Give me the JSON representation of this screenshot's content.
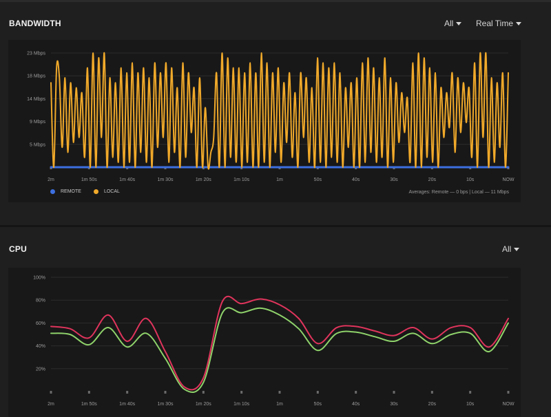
{
  "bandwidth": {
    "title": "BANDWIDTH",
    "filter": {
      "selected": "All",
      "icon": "caret-down-icon"
    },
    "range": {
      "selected": "Real Time",
      "icon": "caret-down-icon"
    },
    "legend": [
      {
        "label": "REMOTE",
        "color": "#3d6fe0"
      },
      {
        "label": "LOCAL",
        "color": "#f0a92a"
      }
    ],
    "averages": "Averages: Remote — 0 bps | Local — 11 Mbps"
  },
  "cpu": {
    "title": "CPU",
    "filter": {
      "selected": "All",
      "icon": "caret-down-icon"
    }
  },
  "chart_data": [
    {
      "type": "line",
      "ylabel": "",
      "xlabel": "",
      "y_ticks": [
        "5 Mbps",
        "9 Mbps",
        "14 Mbps",
        "18 Mbps",
        "23 Mbps"
      ],
      "y_tick_values": [
        4.6,
        9.2,
        13.8,
        18.4,
        23
      ],
      "ylim": [
        0,
        23
      ],
      "x_ticks": [
        "2m",
        "1m 50s",
        "1m 40s",
        "1m 30s",
        "1m 20s",
        "1m 10s",
        "1m",
        "50s",
        "40s",
        "30s",
        "20s",
        "10s",
        "NOW"
      ],
      "xlim": [
        -120,
        0
      ],
      "grid": true,
      "legend_position": "bottom-left",
      "series": [
        {
          "name": "REMOTE",
          "color": "#3d6fe0",
          "values": [
            0,
            0,
            0,
            0,
            0,
            0,
            0,
            0,
            0,
            0,
            0,
            0,
            0
          ]
        },
        {
          "name": "LOCAL",
          "color": "#f0a92a",
          "values": [
            17,
            0,
            20,
            18,
            4,
            18,
            3,
            17,
            5,
            16,
            6,
            15,
            2,
            20,
            0,
            23,
            0,
            22,
            6,
            23,
            0,
            18,
            2,
            17,
            1,
            20,
            0,
            19,
            1,
            21,
            0,
            19,
            3,
            20,
            1,
            18,
            0,
            21,
            4,
            19,
            6,
            21,
            1,
            20,
            3,
            16,
            0,
            21,
            2,
            19,
            7,
            16,
            0,
            18,
            0,
            12,
            0,
            3,
            6,
            19,
            0,
            23,
            0,
            22,
            2,
            20,
            1,
            20,
            0,
            19,
            1,
            21,
            0,
            19,
            0,
            23,
            1,
            21,
            0,
            19,
            3,
            20,
            1,
            17,
            5,
            19,
            2,
            15,
            0,
            19,
            6,
            18,
            1,
            16,
            0,
            22,
            1,
            21,
            0,
            20,
            2,
            21,
            1,
            19,
            0,
            16,
            4,
            17,
            0,
            18,
            0,
            21,
            1,
            22,
            3,
            20,
            1,
            18,
            2,
            22,
            0,
            18,
            1,
            17,
            5,
            15,
            7,
            14,
            1,
            21,
            0,
            23,
            0,
            22,
            2,
            20,
            1,
            19,
            0,
            16,
            6,
            15,
            8,
            19,
            3,
            18,
            7,
            17,
            9,
            16,
            2,
            21,
            0,
            23,
            6,
            23,
            0,
            18,
            1,
            17,
            4,
            19,
            0,
            19
          ]
        }
      ]
    },
    {
      "type": "line",
      "ylabel": "",
      "xlabel": "",
      "y_ticks": [
        "20%",
        "40%",
        "60%",
        "80%",
        "100%"
      ],
      "y_tick_values": [
        20,
        40,
        60,
        80,
        100
      ],
      "ylim": [
        0,
        100
      ],
      "x_ticks": [
        "2m",
        "1m 50s",
        "1m 40s",
        "1m 30s",
        "1m 20s",
        "1m 10s",
        "1m",
        "50s",
        "40s",
        "30s",
        "20s",
        "10s",
        "NOW"
      ],
      "xlim": [
        -120,
        0
      ],
      "grid": true,
      "series": [
        {
          "color": "#8fd36b",
          "x": [
            -120,
            -115,
            -110,
            -105,
            -100,
            -95,
            -90,
            -85,
            -80,
            -75,
            -70,
            -65,
            -60,
            -55,
            -50,
            -45,
            -40,
            -35,
            -30,
            -25,
            -20,
            -15,
            -10,
            -5,
            0
          ],
          "values": [
            51,
            50,
            41,
            56,
            39,
            51,
            29,
            2,
            8,
            69,
            69,
            73,
            67,
            55,
            36,
            51,
            52,
            48,
            44,
            51,
            42,
            50,
            51,
            35,
            60
          ]
        },
        {
          "color": "#e0345c",
          "x": [
            -120,
            -115,
            -110,
            -105,
            -100,
            -95,
            -90,
            -85,
            -80,
            -75,
            -70,
            -65,
            -60,
            -55,
            -50,
            -45,
            -40,
            -35,
            -30,
            -25,
            -20,
            -15,
            -10,
            -5,
            0
          ],
          "values": [
            57,
            55,
            47,
            67,
            44,
            64,
            35,
            4,
            12,
            79,
            77,
            81,
            76,
            64,
            42,
            56,
            57,
            53,
            49,
            56,
            46,
            56,
            56,
            39,
            64
          ]
        }
      ]
    }
  ]
}
